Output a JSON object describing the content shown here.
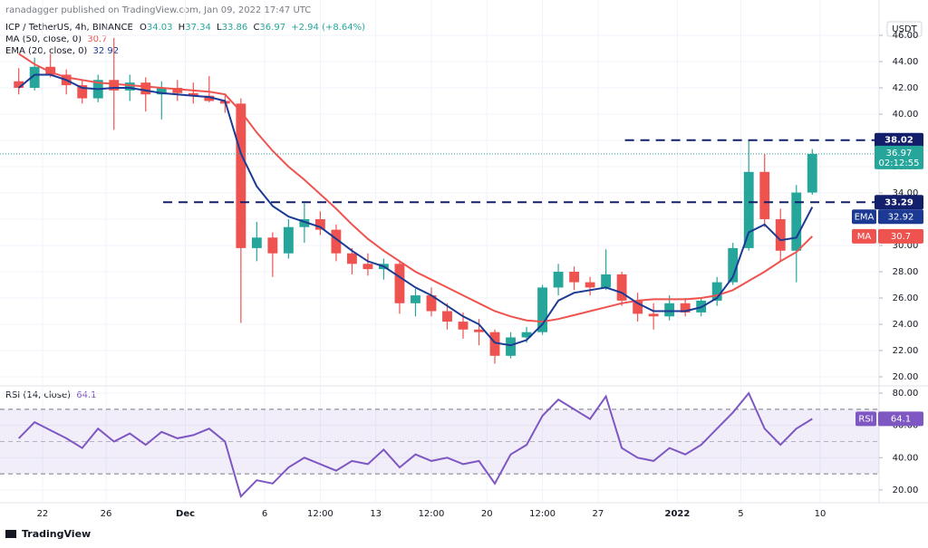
{
  "chart_data": [
    {
      "type": "candlestick",
      "subtitle": "ranadagger published on TradingView.com, Jan 09, 2022 17:47 UTC",
      "title": "ICP / TetherUS, 4h, BINANCE",
      "ohlc_labels": [
        "O",
        "H",
        "L",
        "C"
      ],
      "change": "+2.94 (+8.64%)",
      "currency": "USDT",
      "countdown": "02:12:55",
      "logo": "TradingView",
      "up_color": "#26a69a",
      "down_color": "#ef5350",
      "x": [
        20.5,
        21.5,
        22.5,
        23.5,
        24.5,
        25.5,
        26.5,
        27.5,
        28.5,
        29.5,
        30.5,
        31.5,
        32.5,
        33.5,
        34.5,
        35.5,
        36.5,
        37.5,
        38.5,
        39.5,
        40.5,
        41.5,
        42.5,
        43.5,
        44.5,
        45.5,
        46.5,
        47.5,
        48.5,
        49.5,
        50.5,
        51.5,
        52.5,
        53.5,
        54.5,
        55.5,
        56.5,
        57.5,
        58.5,
        59.5,
        60.5,
        61.5,
        62.5,
        63.5,
        64.5,
        65.5,
        66.5,
        67.5,
        68.5,
        69.5,
        70.5
      ],
      "open": [
        42.5,
        42.0,
        43.6,
        43.0,
        42.2,
        41.2,
        42.6,
        41.8,
        42.4,
        41.5,
        42.0,
        41.6,
        41.4,
        41.0,
        40.8,
        29.8,
        30.6,
        29.4,
        31.4,
        32.0,
        31.2,
        29.4,
        28.6,
        28.2,
        28.6,
        25.6,
        26.2,
        25.0,
        24.2,
        23.6,
        23.4,
        21.6,
        23.0,
        23.4,
        26.8,
        28.0,
        27.2,
        26.8,
        27.8,
        25.8,
        24.8,
        24.6,
        25.6,
        24.9,
        25.8,
        27.2,
        29.8,
        35.6,
        32.0,
        29.6,
        34.03
      ],
      "high": [
        43.5,
        44.3,
        44.6,
        43.4,
        42.6,
        43.0,
        45.8,
        43.0,
        42.8,
        42.5,
        42.6,
        42.4,
        42.9,
        41.5,
        41.2,
        31.8,
        31.0,
        32.0,
        33.2,
        32.6,
        31.6,
        29.8,
        29.4,
        29.0,
        28.8,
        26.7,
        26.8,
        25.6,
        24.9,
        24.4,
        23.6,
        23.4,
        23.8,
        27.0,
        28.6,
        28.4,
        27.6,
        29.7,
        28.0,
        26.4,
        25.6,
        26.2,
        26.0,
        26.0,
        27.6,
        30.2,
        38.02,
        37.0,
        32.8,
        34.6,
        37.34
      ],
      "low": [
        41.5,
        41.8,
        42.8,
        41.5,
        40.8,
        40.9,
        38.8,
        41.0,
        40.2,
        39.6,
        41.0,
        40.8,
        40.9,
        40.1,
        24.1,
        28.8,
        27.6,
        29.0,
        30.2,
        30.8,
        28.8,
        27.8,
        27.7,
        27.4,
        24.8,
        24.6,
        24.6,
        23.6,
        22.9,
        22.4,
        21.0,
        21.4,
        22.6,
        23.2,
        26.2,
        26.6,
        26.2,
        26.6,
        25.4,
        24.2,
        23.6,
        24.3,
        24.6,
        24.6,
        25.4,
        27.0,
        29.6,
        31.4,
        28.8,
        27.2,
        33.86
      ],
      "close": [
        42.0,
        43.6,
        43.0,
        42.2,
        41.2,
        42.6,
        41.8,
        42.4,
        41.5,
        42.0,
        41.6,
        41.4,
        41.0,
        40.8,
        29.8,
        30.6,
        29.4,
        31.4,
        32.0,
        31.2,
        29.4,
        28.6,
        28.2,
        28.6,
        25.6,
        26.2,
        25.0,
        24.2,
        23.6,
        23.4,
        21.6,
        23.0,
        23.4,
        26.8,
        28.0,
        27.2,
        26.8,
        27.8,
        25.8,
        24.8,
        24.6,
        25.6,
        24.9,
        25.8,
        27.2,
        29.8,
        35.6,
        32.0,
        29.6,
        34.03,
        36.97
      ],
      "series": [
        {
          "name": "MA (50, close, 0)",
          "tag": "MA",
          "color": "#ef5350",
          "values": [
            44.6,
            43.8,
            43.2,
            42.8,
            42.6,
            42.4,
            42.3,
            42.2,
            42.1,
            42.0,
            41.9,
            41.8,
            41.7,
            41.5,
            40.2,
            38.6,
            37.2,
            36.0,
            35.0,
            33.9,
            32.8,
            31.6,
            30.5,
            29.6,
            28.8,
            28.0,
            27.4,
            26.8,
            26.2,
            25.6,
            25.0,
            24.6,
            24.3,
            24.2,
            24.4,
            24.7,
            25.0,
            25.3,
            25.6,
            25.8,
            25.9,
            25.9,
            25.9,
            26.0,
            26.2,
            26.6,
            27.3,
            28.0,
            28.8,
            29.5,
            30.7
          ]
        },
        {
          "name": "EMA (20, close, 0)",
          "tag": "EMA",
          "color": "#1c3a94",
          "values": [
            42.0,
            43.0,
            43.0,
            42.6,
            42.0,
            41.9,
            42.0,
            42.0,
            41.8,
            41.6,
            41.5,
            41.4,
            41.3,
            41.0,
            37.0,
            34.5,
            33.0,
            32.2,
            31.8,
            31.4,
            30.5,
            29.6,
            28.8,
            28.4,
            27.6,
            26.8,
            26.2,
            25.4,
            24.6,
            24.0,
            22.6,
            22.4,
            22.8,
            24.0,
            25.8,
            26.4,
            26.6,
            26.8,
            26.4,
            25.6,
            25.0,
            25.0,
            25.0,
            25.3,
            26.0,
            27.6,
            31.0,
            31.6,
            30.4,
            30.6,
            32.92
          ]
        }
      ],
      "levels": [
        {
          "value": 38.02,
          "from": 58.7
        },
        {
          "value": 33.29,
          "from": 29.6
        }
      ],
      "level_color": "#131f6b",
      "xlim": [
        19.32,
        74.71
      ],
      "xticks": [
        22,
        26,
        {
          "value": 31,
          "label": "Dec"
        },
        {
          "value": 36,
          "label": "6"
        },
        {
          "value": 39.5,
          "label": "12:00"
        },
        {
          "value": 43,
          "label": "13"
        },
        {
          "value": 46.5,
          "label": "12:00"
        },
        {
          "value": 50,
          "label": "20"
        },
        {
          "value": 53.5,
          "label": "12:00"
        },
        {
          "value": 57,
          "label": "27"
        },
        {
          "value": 62,
          "label": "2022"
        },
        {
          "value": 66,
          "label": "5"
        },
        {
          "value": 71,
          "label": "10"
        }
      ],
      "ylim": [
        19.38,
        47.17
      ],
      "yticks": [
        {
          "value": 20,
          "label": "20.00"
        },
        {
          "value": 22,
          "label": "22.00"
        },
        {
          "value": 24,
          "label": "24.00"
        },
        {
          "value": 26,
          "label": "26.00"
        },
        {
          "value": 28,
          "label": "28.00"
        },
        {
          "value": 30,
          "label": "30.00"
        },
        {
          "value": 32,
          "label": "32.00"
        },
        {
          "value": 34,
          "label": "34.00"
        },
        {
          "value": 36,
          "label": "36.00"
        },
        {
          "value": 38,
          "label": "38.00"
        },
        {
          "value": 40,
          "label": "40.00"
        },
        {
          "value": 42,
          "label": "42.00"
        },
        {
          "value": 44,
          "label": "44.00"
        },
        {
          "value": 46,
          "label": "46.00"
        }
      ],
      "grid": true
    },
    {
      "type": "line",
      "x": [
        20.5,
        21.5,
        22.5,
        23.5,
        24.5,
        25.5,
        26.5,
        27.5,
        28.5,
        29.5,
        30.5,
        31.5,
        32.5,
        33.5,
        34.5,
        35.5,
        36.5,
        37.5,
        38.5,
        39.5,
        40.5,
        41.5,
        42.5,
        43.5,
        44.5,
        45.5,
        46.5,
        47.5,
        48.5,
        49.5,
        50.5,
        51.5,
        52.5,
        53.5,
        54.5,
        55.5,
        56.5,
        57.5,
        58.5,
        59.5,
        60.5,
        61.5,
        62.5,
        63.5,
        64.5,
        65.5,
        66.5,
        67.5,
        68.5,
        69.5,
        70.5
      ],
      "series": [
        {
          "name": "RSI (14, close)",
          "tag": "RSI",
          "color": "#7e57c2",
          "values": [
            52,
            62,
            57,
            52,
            46,
            58,
            50,
            55,
            48,
            56,
            52,
            54,
            58,
            50,
            16,
            26,
            24,
            34,
            40,
            36,
            32,
            38,
            36,
            45,
            34,
            42,
            38,
            40,
            36,
            38,
            24,
            42,
            48,
            66,
            76,
            70,
            64,
            78,
            46,
            40,
            38,
            46,
            42,
            48,
            58,
            68,
            80,
            58,
            48,
            58,
            64.1
          ]
        }
      ],
      "band": [
        30,
        70
      ],
      "midline": 50,
      "ylim": [
        12.1,
        83.4
      ],
      "yticks": [
        {
          "value": 20,
          "label": "20.00"
        },
        {
          "value": 40,
          "label": "40.00"
        },
        {
          "value": 60,
          "label": "60.00"
        },
        {
          "value": 80,
          "label": "80.00"
        }
      ],
      "grid": true
    }
  ]
}
